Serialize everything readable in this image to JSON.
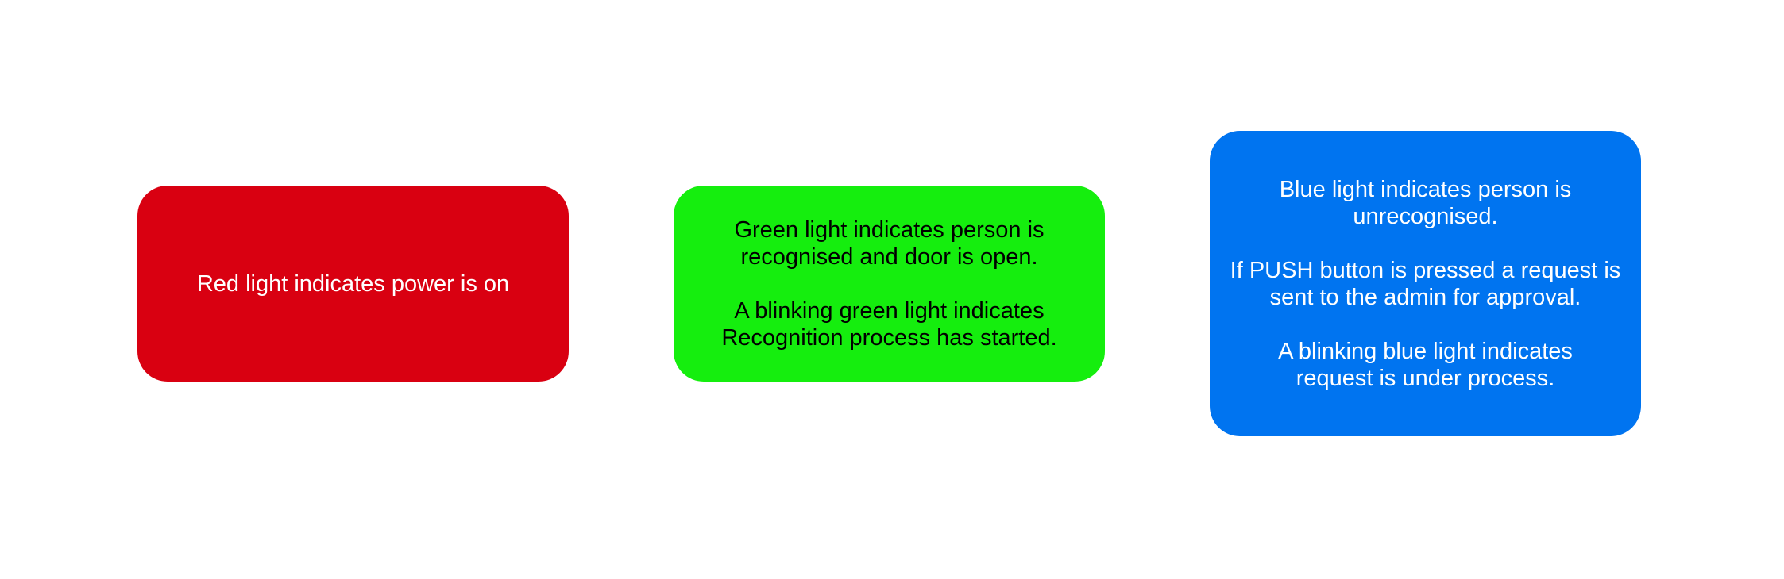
{
  "cards": [
    {
      "color": "#D90011",
      "text_color": "#FFFFFF",
      "paragraphs": [
        "Red light indicates power is on"
      ]
    },
    {
      "color": "#15EE0E",
      "text_color": "#000000",
      "paragraphs": [
        "Green light indicates person is recognised and door is open.",
        "A blinking green light indicates Recognition process has started."
      ]
    },
    {
      "color": "#0074F0",
      "text_color": "#FFFFFF",
      "paragraphs": [
        "Blue light indicates person is unrecognised.",
        "If PUSH button is pressed a request is sent to the admin for approval.",
        "A blinking blue light indicates request is under process."
      ]
    }
  ]
}
